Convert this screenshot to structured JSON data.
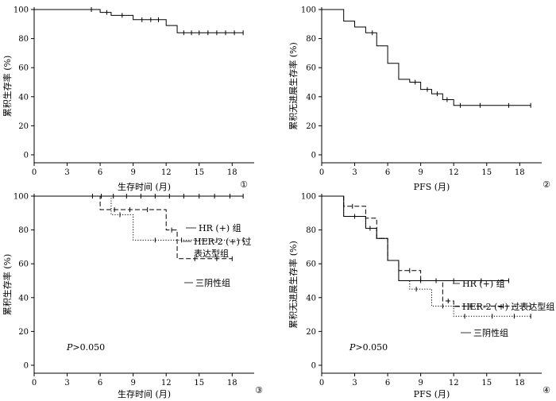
{
  "chart_data": [
    {
      "type": "line",
      "panel": "①",
      "xlabel": "生存时间 (月)",
      "ylabel": "累积生存率 (%)",
      "xlim": [
        0,
        20
      ],
      "ylim": [
        0,
        100
      ],
      "xticks": [
        0,
        3,
        6,
        9,
        12,
        15,
        18
      ],
      "yticks": [
        0,
        20,
        40,
        60,
        80,
        100
      ],
      "annotation": "",
      "series": [
        {
          "name": "",
          "style": "solid",
          "steps": [
            [
              0,
              100
            ],
            [
              6,
              98
            ],
            [
              7,
              96
            ],
            [
              9,
              93
            ],
            [
              12,
              89
            ],
            [
              13,
              84
            ],
            [
              19,
              84
            ]
          ],
          "censored": [
            [
              5.2,
              100
            ],
            [
              6.6,
              98
            ],
            [
              8,
              96
            ],
            [
              9.8,
              93
            ],
            [
              10.6,
              93
            ],
            [
              11.3,
              93
            ],
            [
              13.6,
              84
            ],
            [
              14.3,
              84
            ],
            [
              15,
              84
            ],
            [
              15.8,
              84
            ],
            [
              16.6,
              84
            ],
            [
              17.4,
              84
            ],
            [
              18.2,
              84
            ],
            [
              19,
              84
            ]
          ]
        }
      ],
      "legend": []
    },
    {
      "type": "line",
      "panel": "②",
      "xlabel": "PFS (月)",
      "ylabel": "累积无进展生存率 (%)",
      "xlim": [
        0,
        20
      ],
      "ylim": [
        0,
        100
      ],
      "xticks": [
        0,
        3,
        6,
        9,
        12,
        15,
        18
      ],
      "yticks": [
        0,
        20,
        40,
        60,
        80,
        100
      ],
      "annotation": "",
      "series": [
        {
          "name": "",
          "style": "solid",
          "steps": [
            [
              0,
              100
            ],
            [
              2,
              92
            ],
            [
              3,
              88
            ],
            [
              4,
              84
            ],
            [
              5,
              75
            ],
            [
              6,
              63
            ],
            [
              7,
              52
            ],
            [
              8,
              50
            ],
            [
              9,
              45
            ],
            [
              10,
              42
            ],
            [
              11,
              38
            ],
            [
              12,
              34
            ],
            [
              19,
              34
            ]
          ],
          "censored": [
            [
              4.6,
              84
            ],
            [
              8.5,
              50
            ],
            [
              9.6,
              45
            ],
            [
              10.5,
              42
            ],
            [
              11.4,
              38
            ],
            [
              12.6,
              34
            ],
            [
              14.4,
              34
            ],
            [
              17,
              34
            ],
            [
              19,
              34
            ]
          ]
        }
      ],
      "legend": []
    },
    {
      "type": "line",
      "panel": "③",
      "xlabel": "生存时间 (月)",
      "ylabel": "累积生存率 (%)",
      "xlim": [
        0,
        20
      ],
      "ylim": [
        0,
        100
      ],
      "xticks": [
        0,
        3,
        6,
        9,
        12,
        15,
        18
      ],
      "yticks": [
        0,
        20,
        40,
        60,
        80,
        100
      ],
      "annotation": ">0.050",
      "annotation_italic": "P",
      "series": [
        {
          "name": "HR (+) 组",
          "style": "solid",
          "steps": [
            [
              0,
              100
            ],
            [
              19,
              100
            ]
          ],
          "censored": [
            [
              5.3,
              100
            ],
            [
              6.1,
              100
            ],
            [
              7.2,
              100
            ],
            [
              8.4,
              100
            ],
            [
              9.7,
              100
            ],
            [
              11,
              100
            ],
            [
              12.3,
              100
            ],
            [
              13.6,
              100
            ],
            [
              15,
              100
            ],
            [
              16.4,
              100
            ],
            [
              17.8,
              100
            ],
            [
              19,
              100
            ]
          ]
        },
        {
          "name": "HER-2 (+) 过表达型组",
          "style": "dashed",
          "steps": [
            [
              0,
              100
            ],
            [
              6,
              92
            ],
            [
              12,
              80
            ],
            [
              13,
              63
            ],
            [
              18,
              63
            ]
          ],
          "censored": [
            [
              7.3,
              92
            ],
            [
              8.7,
              92
            ],
            [
              10.3,
              92
            ],
            [
              12.5,
              80
            ],
            [
              14.6,
              63
            ],
            [
              16.6,
              63
            ],
            [
              18,
              63
            ]
          ]
        },
        {
          "name": "三阴性组",
          "style": "dotted",
          "steps": [
            [
              0,
              100
            ],
            [
              7,
              89
            ],
            [
              9,
              74
            ],
            [
              19,
              74
            ]
          ],
          "censored": [
            [
              7.8,
              89
            ],
            [
              11,
              74
            ],
            [
              13.4,
              74
            ],
            [
              16.6,
              74
            ],
            [
              19,
              74
            ]
          ]
        }
      ],
      "legend": [
        {
          "label": "HR (+) 组"
        },
        {
          "label": "HER-2 (+) 过",
          "label2": "表达型组"
        },
        {
          "label": "三阴性组"
        }
      ]
    },
    {
      "type": "line",
      "panel": "④",
      "xlabel": "PFS (月)",
      "ylabel": "累积无进展生存率 (%)",
      "xlim": [
        0,
        20
      ],
      "ylim": [
        0,
        100
      ],
      "xticks": [
        0,
        3,
        6,
        9,
        12,
        15,
        18
      ],
      "yticks": [
        0,
        20,
        40,
        60,
        80,
        100
      ],
      "annotation": ">0.050",
      "annotation_italic": "P",
      "series": [
        {
          "name": "HR (+) 组",
          "style": "solid",
          "steps": [
            [
              0,
              100
            ],
            [
              2,
              88
            ],
            [
              4,
              81
            ],
            [
              5,
              75
            ],
            [
              6,
              62
            ],
            [
              7,
              50
            ],
            [
              17,
              50
            ]
          ],
          "censored": [
            [
              3,
              88
            ],
            [
              4.4,
              81
            ],
            [
              9,
              50
            ],
            [
              12,
              50
            ],
            [
              14.5,
              50
            ],
            [
              17,
              50
            ]
          ]
        },
        {
          "name": "HER-2 (+) 过表达型组",
          "style": "dashed",
          "steps": [
            [
              0,
              100
            ],
            [
              2,
              94
            ],
            [
              4,
              87
            ],
            [
              5,
              75
            ],
            [
              6,
              62
            ],
            [
              7,
              56
            ],
            [
              9,
              50
            ],
            [
              11,
              38
            ],
            [
              12,
              35
            ],
            [
              19,
              35
            ]
          ],
          "censored": [
            [
              2.8,
              94
            ],
            [
              8,
              56
            ],
            [
              10.4,
              50
            ],
            [
              11.5,
              38
            ],
            [
              13.5,
              35
            ],
            [
              16.5,
              35
            ],
            [
              19,
              35
            ]
          ]
        },
        {
          "name": "三阴性组",
          "style": "dotted",
          "steps": [
            [
              0,
              100
            ],
            [
              2,
              88
            ],
            [
              4,
              81
            ],
            [
              5,
              75
            ],
            [
              6,
              62
            ],
            [
              7,
              50
            ],
            [
              8,
              45
            ],
            [
              10,
              35
            ],
            [
              12,
              29
            ],
            [
              19,
              29
            ]
          ],
          "censored": [
            [
              8.6,
              45
            ],
            [
              11,
              35
            ],
            [
              13,
              29
            ],
            [
              15.5,
              29
            ],
            [
              17.5,
              29
            ],
            [
              19,
              29
            ]
          ]
        }
      ],
      "legend": [
        {
          "label": "HR (+) 组"
        },
        {
          "label": "HER-2 (+) 过表达型组"
        },
        {
          "label": "三阴性组"
        }
      ]
    }
  ]
}
